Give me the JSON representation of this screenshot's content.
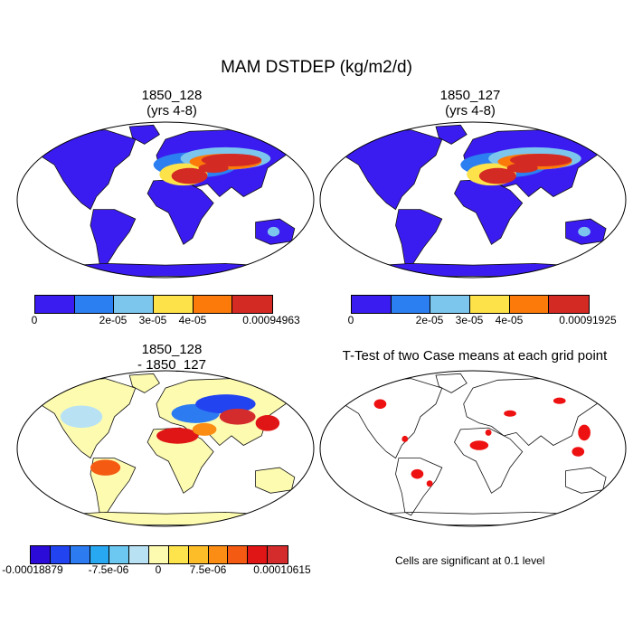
{
  "title": "MAM DSTDEP (kg/m2/d)",
  "panels": [
    {
      "id": "p1",
      "title_lines": [
        "1850_128",
        "(yrs 4-8)"
      ],
      "colorbar": {
        "colors": [
          "#3b1cf0",
          "#2b7ff0",
          "#7cc6ee",
          "#fde24a",
          "#fb7a0a",
          "#d42a24"
        ],
        "labels": [
          "0",
          "2e-05",
          "3e-05",
          "4e-05",
          "0.00094963"
        ]
      }
    },
    {
      "id": "p2",
      "title_lines": [
        "1850_127",
        "(yrs 4-8)"
      ],
      "colorbar": {
        "colors": [
          "#3b1cf0",
          "#2b7ff0",
          "#7cc6ee",
          "#fde24a",
          "#fb7a0a",
          "#d42a24"
        ],
        "labels": [
          "0",
          "2e-05",
          "3e-05",
          "4e-05",
          "0.00091925"
        ]
      }
    },
    {
      "id": "p3",
      "title_lines": [
        "1850_128",
        "- 1850_127"
      ],
      "colorbar": {
        "colors": [
          "#2a0bd8",
          "#2244f0",
          "#2c7bf0",
          "#28a8f0",
          "#6cc8f0",
          "#b8e2f4",
          "#fdfbb0",
          "#fde34c",
          "#fdbd28",
          "#fb8d14",
          "#f45a12",
          "#e01616",
          "#d42c2c"
        ],
        "labels": [
          "-0.00018879",
          "-7.5e-06",
          "0",
          "7.5e-06",
          "0.00010615"
        ]
      }
    },
    {
      "id": "p4",
      "title_lines": [
        "T-Test of two Case means at each grid point"
      ],
      "note": "Cells are significant at 0.1 level",
      "significance_color": "#ee1111"
    }
  ]
}
